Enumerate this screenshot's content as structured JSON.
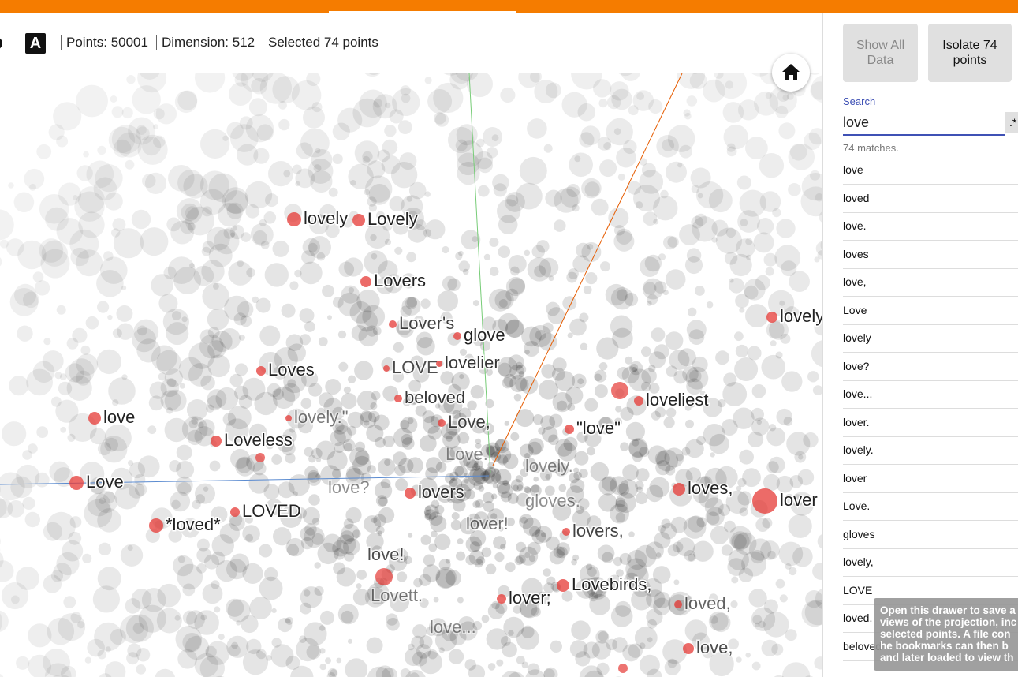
{
  "toolbar": {
    "icon": "A",
    "points": "Points: 50001",
    "dimension": "Dimension: 512",
    "selected": "Selected 74 points"
  },
  "plot": {
    "labels": [
      "lovely",
      "Lovely",
      "Lovers",
      "Lover's",
      "glove",
      "LOVE",
      "lovelier",
      "Loves",
      "beloved",
      "lovely.\"",
      "Love,",
      "love",
      "Loveless",
      "Love.",
      "lovely.",
      "\"love\"",
      "loveliest",
      "lovely",
      "Love",
      "love?",
      "lovers",
      "gloves.",
      "loves,",
      "lover",
      "*loved*",
      "LOVED",
      "lover!",
      "lovers,",
      "love!",
      "Lovett.",
      "lover;",
      "Lovebirds,",
      "loved,",
      "love...",
      "love,"
    ]
  },
  "panel": {
    "buttons": [
      "Show All Data",
      "Isolate 74 points"
    ],
    "search": {
      "label": "Search",
      "value": "love",
      "regex": ".*"
    },
    "matches": "74 matches.",
    "results": [
      "love",
      "loved",
      "love.",
      "loves",
      "love,",
      "Love",
      "lovely",
      "love?",
      "love...",
      "lover.",
      "lovely.",
      "lover",
      "Love.",
      "gloves",
      "lovely,",
      "LOVE",
      "loved.",
      "beloved"
    ],
    "tooltip": [
      "Open this drawer to save a",
      "views of the projection, inc",
      "selected points. A file con",
      "he bookmarks can then b",
      "and later loaded to view th"
    ]
  }
}
